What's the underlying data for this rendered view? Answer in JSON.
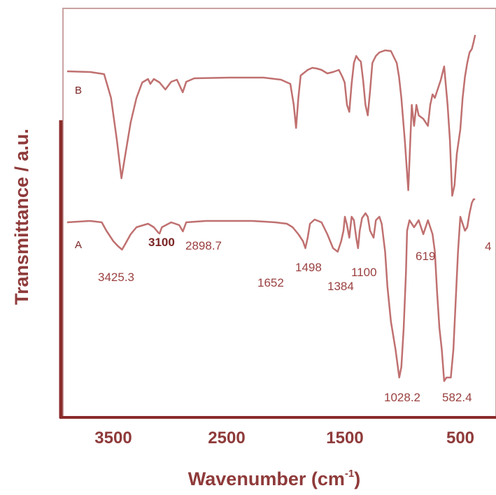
{
  "chart_data": {
    "type": "line",
    "title": "",
    "xlabel": "Wavenumber (cm",
    "xlabel_sup": "-1",
    "xlabel_end": ")",
    "ylabel": "Transmittance / a.u.",
    "xlim": [
      3900,
      370
    ],
    "x_reversed": true,
    "x_ticks": [
      {
        "value": 3500,
        "label": "3500"
      },
      {
        "value": 2500,
        "label": "2500"
      },
      {
        "value": 1500,
        "label": "1500"
      },
      {
        "value": 500,
        "label": "500"
      }
    ],
    "grid": false,
    "colors": {
      "line": "#c07070",
      "axis": "#8b2b2b",
      "frame": "#b86a6a",
      "text": "#8f3a3a"
    },
    "series": [
      {
        "name": "B",
        "baseline_y": 102,
        "points": [
          [
            3900,
            102
          ],
          [
            3700,
            103
          ],
          [
            3580,
            106
          ],
          [
            3520,
            140
          ],
          [
            3470,
            200
          ],
          [
            3430,
            255
          ],
          [
            3400,
            225
          ],
          [
            3350,
            175
          ],
          [
            3300,
            140
          ],
          [
            3250,
            118
          ],
          [
            3200,
            113
          ],
          [
            3180,
            120
          ],
          [
            3150,
            113
          ],
          [
            3100,
            118
          ],
          [
            3050,
            128
          ],
          [
            3000,
            117
          ],
          [
            2950,
            114
          ],
          [
            2900,
            132
          ],
          [
            2870,
            117
          ],
          [
            2800,
            112
          ],
          [
            2500,
            111
          ],
          [
            2200,
            111
          ],
          [
            2050,
            114
          ],
          [
            1970,
            120
          ],
          [
            1940,
            150
          ],
          [
            1920,
            183
          ],
          [
            1900,
            140
          ],
          [
            1880,
            108
          ],
          [
            1820,
            100
          ],
          [
            1780,
            97
          ],
          [
            1740,
            98
          ],
          [
            1700,
            100
          ],
          [
            1650,
            105
          ],
          [
            1600,
            103
          ],
          [
            1550,
            100
          ],
          [
            1520,
            110
          ],
          [
            1500,
            118
          ],
          [
            1480,
            150
          ],
          [
            1460,
            160
          ],
          [
            1440,
            120
          ],
          [
            1420,
            90
          ],
          [
            1400,
            80
          ],
          [
            1380,
            85
          ],
          [
            1360,
            88
          ],
          [
            1340,
            115
          ],
          [
            1320,
            150
          ],
          [
            1300,
            165
          ],
          [
            1280,
            130
          ],
          [
            1260,
            90
          ],
          [
            1230,
            80
          ],
          [
            1200,
            75
          ],
          [
            1150,
            72
          ],
          [
            1100,
            73
          ],
          [
            1050,
            90
          ],
          [
            1030,
            110
          ],
          [
            1010,
            140
          ],
          [
            980,
            200
          ],
          [
            950,
            272
          ],
          [
            920,
            150
          ],
          [
            900,
            180
          ],
          [
            880,
            150
          ],
          [
            860,
            165
          ],
          [
            820,
            170
          ],
          [
            780,
            180
          ],
          [
            760,
            150
          ],
          [
            740,
            135
          ],
          [
            720,
            140
          ],
          [
            700,
            130
          ],
          [
            670,
            115
          ],
          [
            640,
            95
          ],
          [
            610,
            150
          ],
          [
            590,
            200
          ],
          [
            570,
            280
          ],
          [
            550,
            265
          ],
          [
            530,
            220
          ],
          [
            500,
            185
          ],
          [
            480,
            140
          ],
          [
            460,
            110
          ],
          [
            440,
            90
          ],
          [
            420,
            75
          ],
          [
            400,
            70
          ],
          [
            385,
            60
          ],
          [
            372,
            50
          ]
        ]
      },
      {
        "name": "A",
        "baseline_y": 318,
        "points": [
          [
            3900,
            318
          ],
          [
            3700,
            316
          ],
          [
            3600,
            318
          ],
          [
            3560,
            330
          ],
          [
            3500,
            345
          ],
          [
            3460,
            352
          ],
          [
            3425.3,
            357
          ],
          [
            3400,
            350
          ],
          [
            3350,
            335
          ],
          [
            3300,
            325
          ],
          [
            3200,
            320
          ],
          [
            3150,
            325
          ],
          [
            3110,
            333
          ],
          [
            3100,
            334
          ],
          [
            3080,
            325
          ],
          [
            3000,
            318
          ],
          [
            2930,
            322
          ],
          [
            2898.7,
            331
          ],
          [
            2870,
            318
          ],
          [
            2700,
            316
          ],
          [
            2500,
            316
          ],
          [
            2300,
            316
          ],
          [
            2100,
            318
          ],
          [
            2000,
            320
          ],
          [
            1950,
            325
          ],
          [
            1900,
            335
          ],
          [
            1860,
            345
          ],
          [
            1840,
            355
          ],
          [
            1820,
            340
          ],
          [
            1800,
            320
          ],
          [
            1760,
            314
          ],
          [
            1700,
            318
          ],
          [
            1650,
            335
          ],
          [
            1600,
            355
          ],
          [
            1560,
            360
          ],
          [
            1530,
            345
          ],
          [
            1510,
            330
          ],
          [
            1498,
            310
          ],
          [
            1480,
            322
          ],
          [
            1460,
            340
          ],
          [
            1440,
            310
          ],
          [
            1420,
            315
          ],
          [
            1400,
            340
          ],
          [
            1384,
            355
          ],
          [
            1370,
            330
          ],
          [
            1350,
            312
          ],
          [
            1320,
            305
          ],
          [
            1300,
            310
          ],
          [
            1280,
            330
          ],
          [
            1250,
            340
          ],
          [
            1230,
            315
          ],
          [
            1200,
            310
          ],
          [
            1180,
            320
          ],
          [
            1150,
            360
          ],
          [
            1130,
            410
          ],
          [
            1100,
            460
          ],
          [
            1060,
            500
          ],
          [
            1028.2,
            540
          ],
          [
            1010,
            525
          ],
          [
            990,
            470
          ],
          [
            970,
            390
          ],
          [
            960,
            330
          ],
          [
            940,
            315
          ],
          [
            900,
            325
          ],
          [
            860,
            315
          ],
          [
            840,
            325
          ],
          [
            820,
            335
          ],
          [
            800,
            325
          ],
          [
            780,
            315
          ],
          [
            760,
            325
          ],
          [
            740,
            335
          ],
          [
            720,
            360
          ],
          [
            700,
            420
          ],
          [
            680,
            470
          ],
          [
            660,
            500
          ],
          [
            640,
            545
          ],
          [
            620,
            540
          ],
          [
            582.4,
            540
          ],
          [
            560,
            500
          ],
          [
            540,
            430
          ],
          [
            520,
            360
          ],
          [
            500,
            310
          ],
          [
            480,
            320
          ],
          [
            460,
            330
          ],
          [
            440,
            325
          ],
          [
            420,
            305
          ],
          [
            400,
            290
          ],
          [
            385,
            285
          ],
          [
            372,
            285
          ]
        ]
      }
    ],
    "labels": [
      {
        "text": "B",
        "series": "B"
      },
      {
        "text": "A",
        "series": "A"
      }
    ],
    "peak_annotations": [
      {
        "text": "3425.3",
        "x": 3425.3,
        "bold": false
      },
      {
        "text": "3100",
        "x": 3100,
        "bold": true
      },
      {
        "text": "2898.7",
        "x": 2898.7,
        "bold": false
      },
      {
        "text": "1652",
        "x": 1652,
        "bold": false
      },
      {
        "text": "1498",
        "x": 1498,
        "bold": false
      },
      {
        "text": "1384",
        "x": 1384,
        "bold": false
      },
      {
        "text": "1100",
        "x": 1100,
        "bold": false
      },
      {
        "text": "619",
        "x": 619,
        "bold": false
      },
      {
        "text": "4",
        "x": 380,
        "bold": false
      },
      {
        "text": "1028.2",
        "x": 1028.2,
        "bold": false
      },
      {
        "text": "582.4",
        "x": 582.4,
        "bold": false
      }
    ]
  }
}
